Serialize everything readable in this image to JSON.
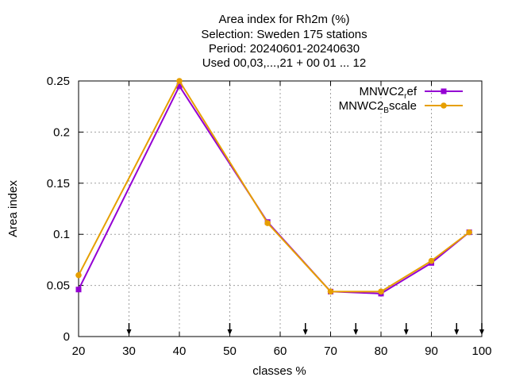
{
  "chart_data": {
    "type": "line",
    "title_lines": [
      "Area index  for Rh2m (%)",
      "Selection: Sweden    175 stations",
      "Period: 20240601-20240630",
      "Used 00,03,...,21 + 00 01 ... 12"
    ],
    "xlabel": "classes %",
    "ylabel": "Area index",
    "xlim": [
      20,
      100
    ],
    "ylim": [
      0,
      0.25
    ],
    "x_ticks": [
      20,
      30,
      40,
      50,
      60,
      70,
      80,
      90,
      100
    ],
    "x_tick_labels": [
      "20",
      "30",
      "40",
      "50",
      "60",
      "70",
      "80",
      "90",
      "100"
    ],
    "y_ticks": [
      0,
      0.05,
      0.1,
      0.15,
      0.2,
      0.25
    ],
    "y_tick_labels": [
      "0",
      "0.05",
      "0.1",
      "0.15",
      "0.2",
      "0.25"
    ],
    "grid": true,
    "legend_position": "top-right",
    "series": [
      {
        "name": "MNWC2_ref",
        "legend_main": "MNWC2",
        "legend_sub": "r",
        "legend_rest": "ef",
        "color": "#9400d3",
        "marker": "square",
        "x": [
          20,
          40,
          57.5,
          70,
          80,
          90,
          97.5
        ],
        "y": [
          0.046,
          0.245,
          0.112,
          0.044,
          0.042,
          0.072,
          0.102
        ]
      },
      {
        "name": "MNWC2_Bscale",
        "legend_main": "MNWC2",
        "legend_sub": "B",
        "legend_rest": "scale",
        "color": "#e69f00",
        "marker": "circle",
        "x": [
          20,
          40,
          57.5,
          70,
          80,
          90,
          97.5
        ],
        "y": [
          0.06,
          0.25,
          0.111,
          0.044,
          0.044,
          0.074,
          0.102
        ]
      }
    ],
    "arrow_markers_x": [
      30,
      50,
      65,
      75,
      85,
      95,
      100
    ]
  }
}
